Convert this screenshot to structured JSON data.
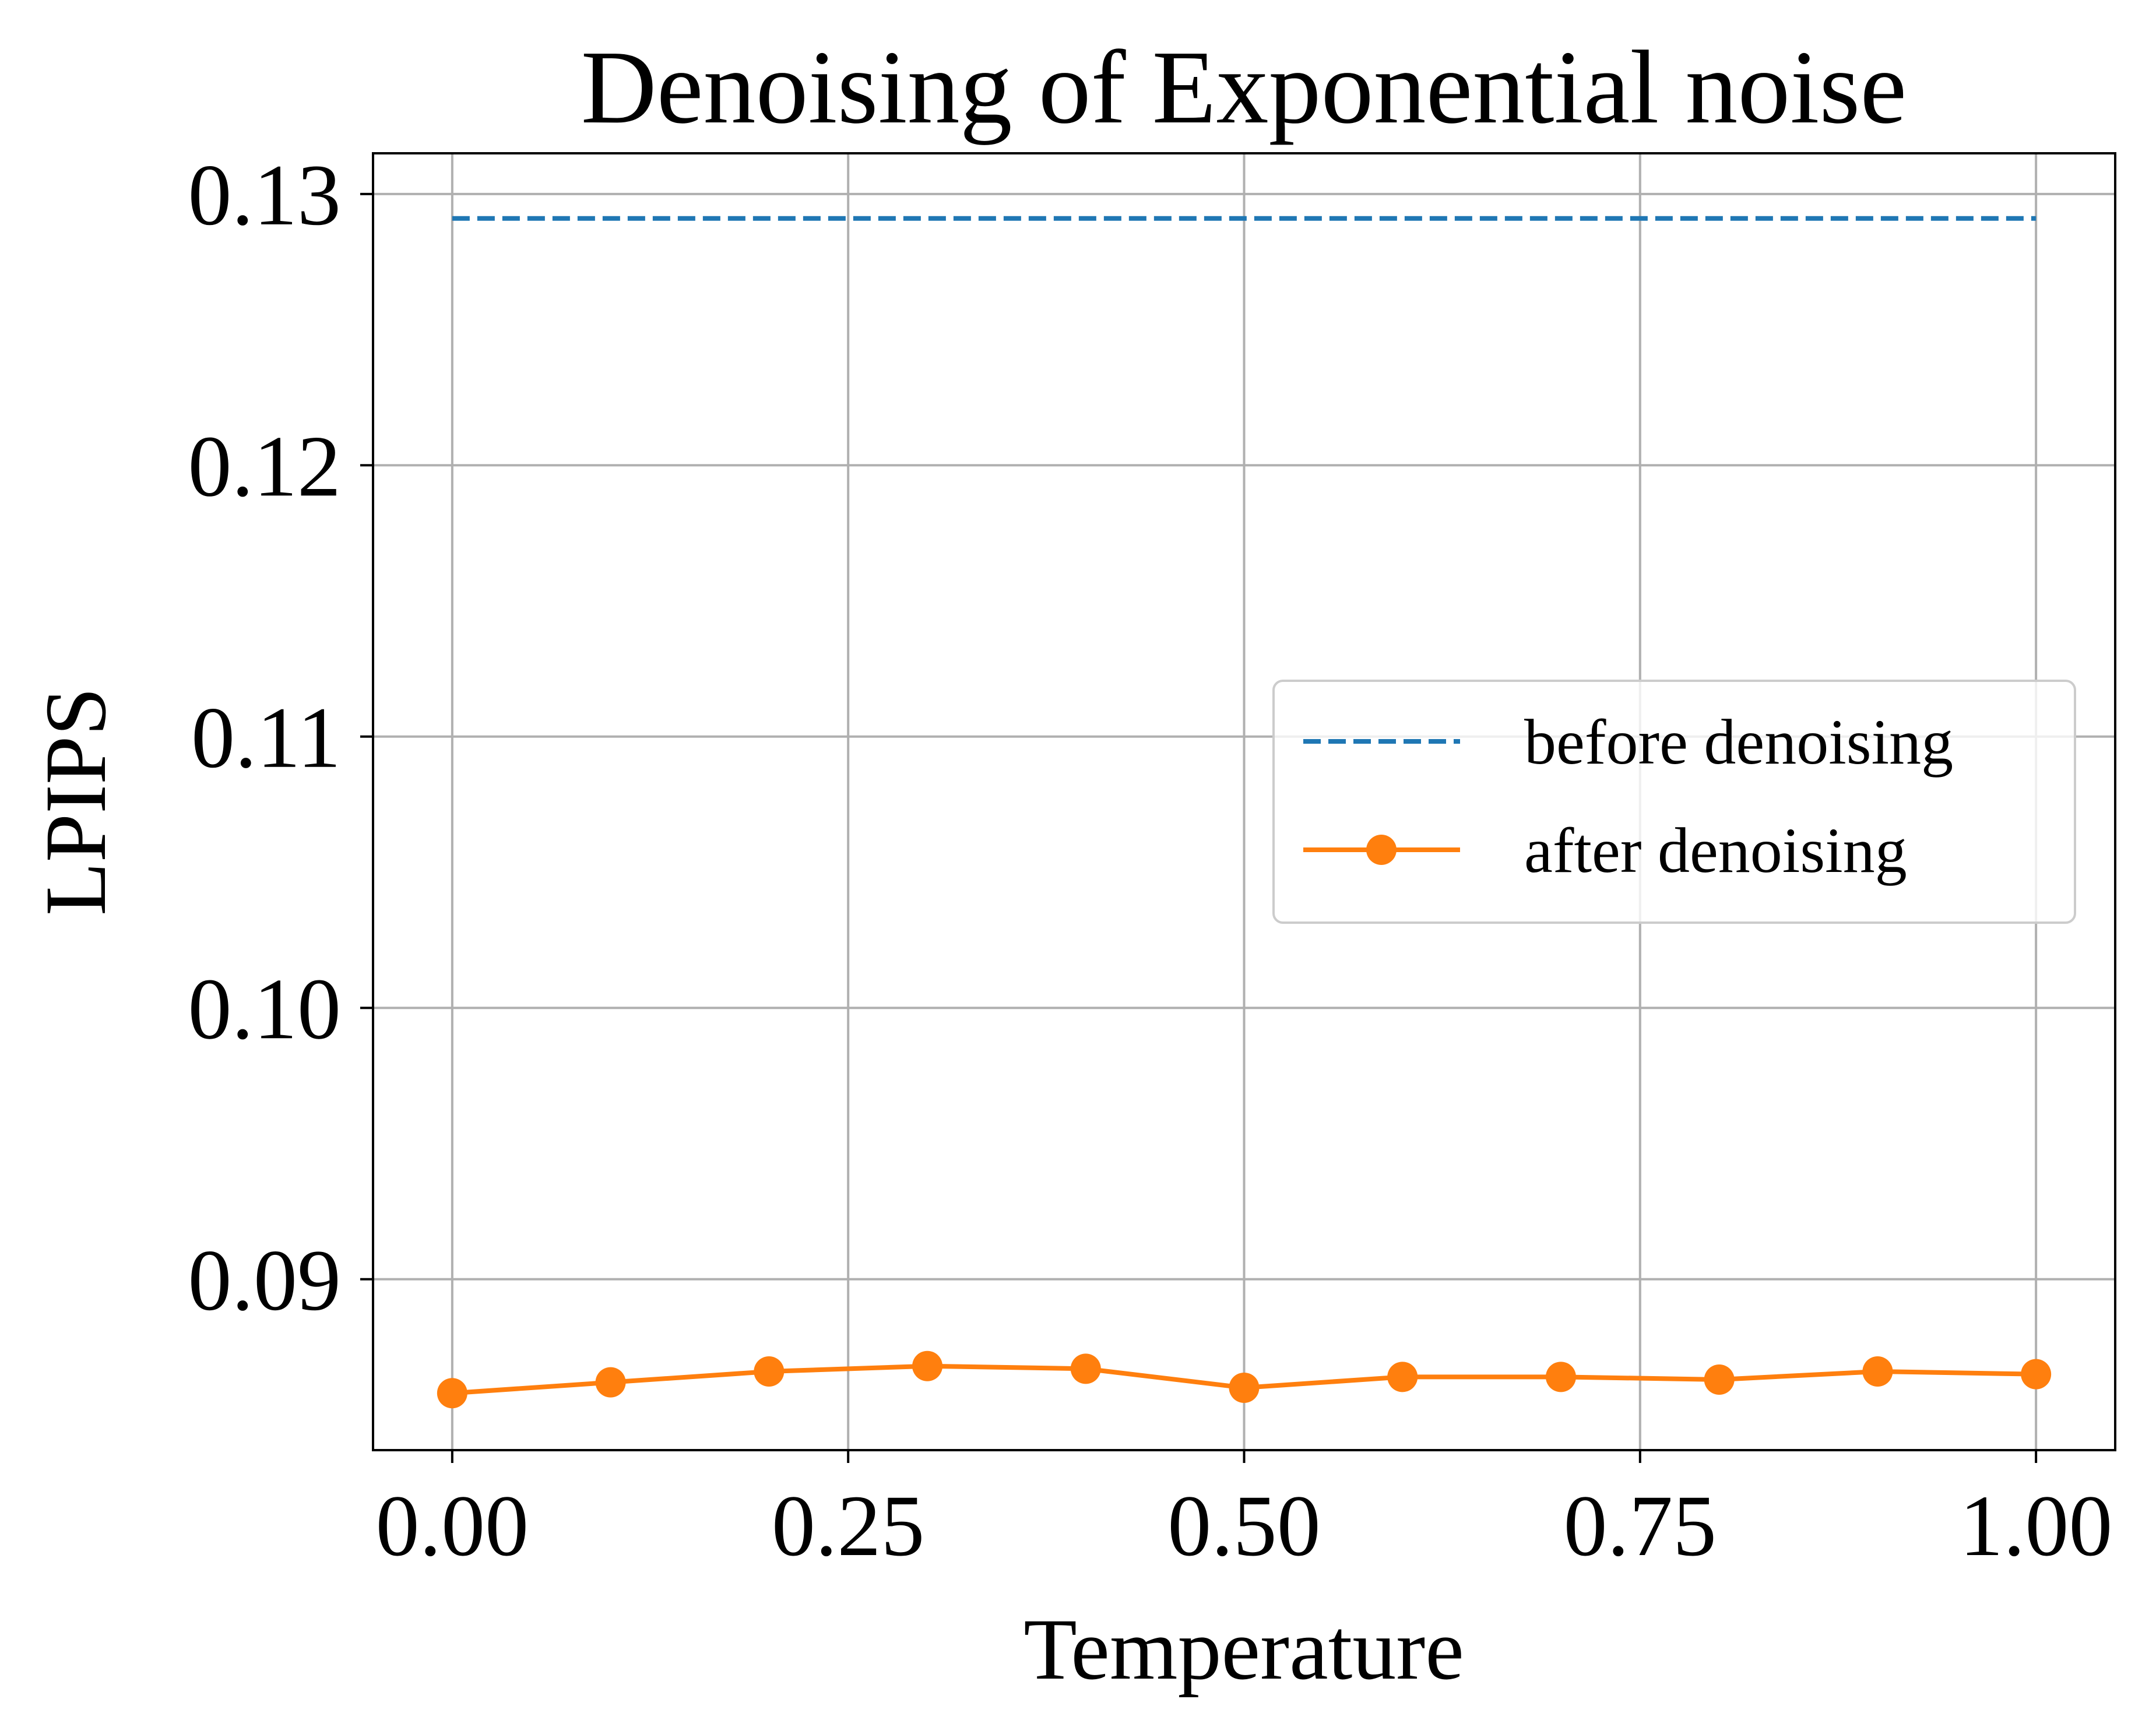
{
  "chart_data": {
    "type": "line",
    "title": "Denoising of Exponential noise",
    "xlabel": "Temperature",
    "ylabel": "LPIPS",
    "xlim": [
      -0.05,
      1.05
    ],
    "ylim": [
      0.0837,
      0.1315
    ],
    "xticks": [
      0.0,
      0.25,
      0.5,
      0.75,
      1.0
    ],
    "xtick_labels": [
      "0.00",
      "0.25",
      "0.50",
      "0.75",
      "1.00"
    ],
    "yticks": [
      0.09,
      0.1,
      0.11,
      0.12,
      0.13
    ],
    "ytick_labels": [
      "0.09",
      "0.10",
      "0.11",
      "0.12",
      "0.13"
    ],
    "grid": true,
    "legend_position": "center-right",
    "series": [
      {
        "name": "before denoising",
        "style": "dashed",
        "color": "#1f77b4",
        "x": [
          0.0,
          1.0
        ],
        "y": [
          0.1291,
          0.1291
        ]
      },
      {
        "name": "after denoising",
        "style": "solid-markers",
        "color": "#ff7f0e",
        "x": [
          0.0,
          0.1,
          0.2,
          0.3,
          0.4,
          0.5,
          0.6,
          0.7,
          0.8,
          0.9,
          1.0
        ],
        "y": [
          0.0858,
          0.0862,
          0.0866,
          0.0868,
          0.0867,
          0.086,
          0.0864,
          0.0864,
          0.0863,
          0.0866,
          0.0865
        ]
      }
    ]
  }
}
